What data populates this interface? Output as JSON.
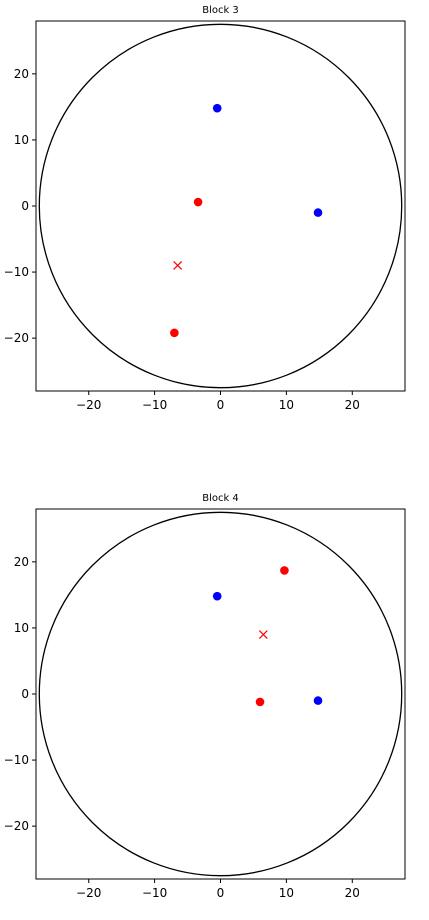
{
  "chart_data": [
    {
      "type": "scatter",
      "title": "Block 3",
      "xlabel": "",
      "ylabel": "",
      "xlim": [
        -28,
        28
      ],
      "ylim": [
        -28,
        28
      ],
      "xticks": [
        -20,
        -10,
        0,
        10,
        20
      ],
      "yticks": [
        20,
        10,
        0,
        -10,
        -20
      ],
      "xtick_labels": [
        "−20",
        "−10",
        "0",
        "10",
        "20"
      ],
      "ytick_labels": [
        "20",
        "10",
        "0",
        "−10",
        "−20"
      ],
      "grid": false,
      "circle": {
        "center": [
          0,
          0
        ],
        "radius": 27.5,
        "color": "#000000"
      },
      "series": [
        {
          "color": "#0000ff",
          "marker": "circle",
          "points": [
            [
              -0.5,
              14.8
            ],
            [
              14.8,
              -1.0
            ]
          ]
        },
        {
          "color": "#ff0000",
          "marker": "circle",
          "points": [
            [
              -3.4,
              0.6
            ],
            [
              -7.0,
              -19.2
            ]
          ]
        },
        {
          "color": "#ff0000",
          "marker": "x",
          "points": [
            [
              -6.5,
              -9.0
            ]
          ]
        }
      ]
    },
    {
      "type": "scatter",
      "title": "Block 4",
      "xlabel": "",
      "ylabel": "",
      "xlim": [
        -28,
        28
      ],
      "ylim": [
        -28,
        28
      ],
      "xticks": [
        -20,
        -10,
        0,
        10,
        20
      ],
      "yticks": [
        20,
        10,
        0,
        -10,
        -20
      ],
      "xtick_labels": [
        "−20",
        "−10",
        "0",
        "10",
        "20"
      ],
      "ytick_labels": [
        "20",
        "10",
        "0",
        "−10",
        "−20"
      ],
      "grid": false,
      "circle": {
        "center": [
          0,
          0
        ],
        "radius": 27.5,
        "color": "#000000"
      },
      "series": [
        {
          "color": "#0000ff",
          "marker": "circle",
          "points": [
            [
              -0.5,
              14.8
            ],
            [
              14.8,
              -1.0
            ]
          ]
        },
        {
          "color": "#ff0000",
          "marker": "circle",
          "points": [
            [
              9.7,
              18.7
            ],
            [
              6.0,
              -1.2
            ]
          ]
        },
        {
          "color": "#ff0000",
          "marker": "x",
          "points": [
            [
              6.5,
              9.0
            ]
          ]
        }
      ]
    }
  ]
}
